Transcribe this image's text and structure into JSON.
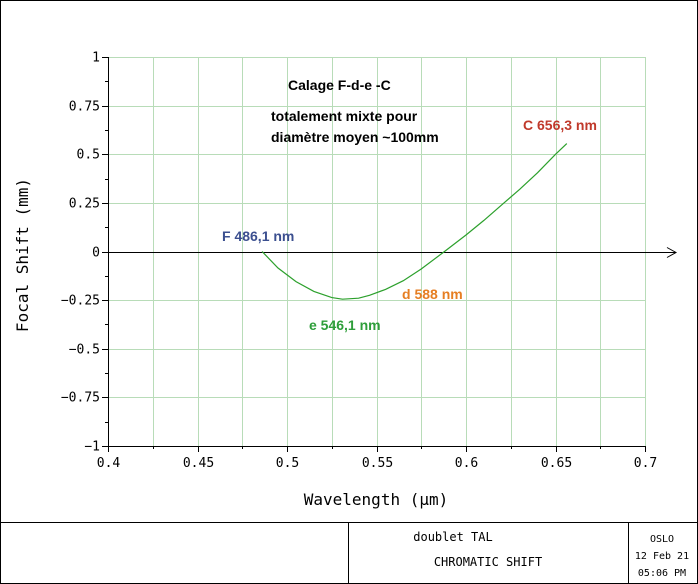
{
  "chart_data": {
    "type": "line",
    "xlabel": "Wavelength (µm)",
    "ylabel": "Focal Shift (mm)",
    "xlim": [
      0.4,
      0.7
    ],
    "ylim": [
      -1,
      1
    ],
    "xticks": [
      0.4,
      0.45,
      0.5,
      0.55,
      0.6,
      0.65,
      0.7
    ],
    "xtick_labels": [
      "0.4",
      "0.45",
      "0.5",
      "0.55",
      "0.6",
      "0.65",
      "0.7"
    ],
    "yticks": [
      1,
      0.75,
      0.5,
      0.25,
      0,
      -0.25,
      -0.5,
      -0.75,
      -1
    ],
    "ytick_labels": [
      "1",
      "0.75",
      "0.5",
      "0.25",
      "0",
      "−0.25",
      "−0.5",
      "−0.75",
      "−1"
    ],
    "grid": true,
    "series": [
      {
        "color": "#2ca02c",
        "x": [
          0.4861,
          0.495,
          0.505,
          0.515,
          0.525,
          0.531,
          0.54,
          0.5461,
          0.555,
          0.565,
          0.575,
          0.588,
          0.6,
          0.61,
          0.62,
          0.63,
          0.64,
          0.65,
          0.6563
        ],
        "y": [
          0.0,
          -0.085,
          -0.155,
          -0.205,
          -0.237,
          -0.245,
          -0.24,
          -0.225,
          -0.195,
          -0.15,
          -0.09,
          0.0,
          0.085,
          0.16,
          0.24,
          0.32,
          0.405,
          0.5,
          0.555
        ]
      }
    ],
    "annotations": [
      {
        "text": "Calage F-d-e -C",
        "color": "#000000"
      },
      {
        "text": "totalement mixte pour",
        "color": "#000000"
      },
      {
        "text": "diamètre moyen ~100mm",
        "color": "#000000"
      },
      {
        "text": "C 656,3 nm",
        "color": "#c0392b"
      },
      {
        "text": "F 486,1 nm",
        "color": "#3b4f8f"
      },
      {
        "text": "d 588 nm",
        "color": "#e67e22"
      },
      {
        "text": "e 546,1 nm",
        "color": "#2e9e3a"
      }
    ]
  },
  "footer": {
    "title_line1": "doublet TAL",
    "title_line2": "CHROMATIC SHIFT",
    "software": "OSLO",
    "date": "12 Feb 21",
    "time": "05:06 PM"
  },
  "colors": {
    "grid": "#b8dcb8",
    "axis": "#000000",
    "curve": "#2ca02c"
  }
}
